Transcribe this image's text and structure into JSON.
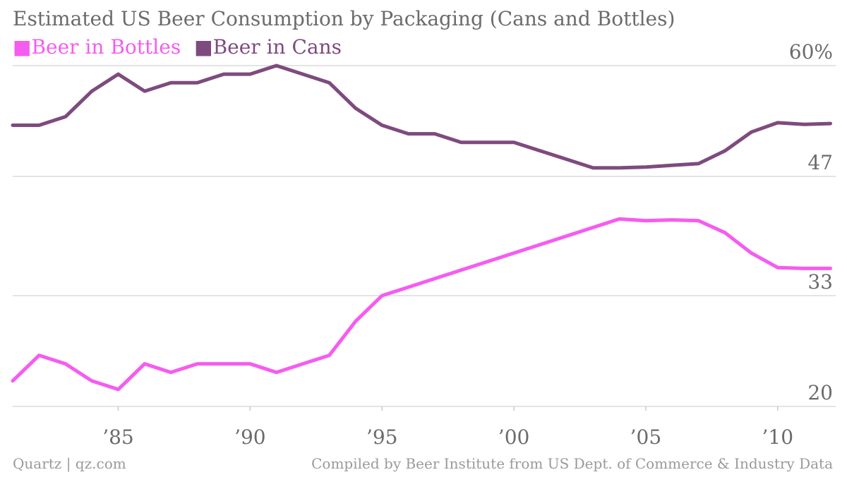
{
  "chart_data": {
    "type": "line",
    "title": "Estimated US Beer Consumption by Packaging (Cans and Bottles)",
    "xlabel": "",
    "ylabel": "",
    "x": [
      1981,
      1982,
      1983,
      1984,
      1985,
      1986,
      1987,
      1988,
      1989,
      1990,
      1991,
      1992,
      1993,
      1994,
      1995,
      1996,
      1997,
      1998,
      1999,
      2000,
      2001,
      2002,
      2003,
      2004,
      2005,
      2006,
      2007,
      2008,
      2009,
      2010,
      2011,
      2012
    ],
    "x_tick_values": [
      1985,
      1990,
      1995,
      2000,
      2005,
      2010
    ],
    "x_tick_labels": [
      "’85",
      "’90",
      "’95",
      "’00",
      "’05",
      "’10"
    ],
    "xlim": [
      1981,
      2012.2
    ],
    "y_tick_values": [
      20,
      33,
      47,
      60
    ],
    "y_tick_labels": [
      "20",
      "33",
      "47",
      "60%"
    ],
    "ylim": [
      20,
      60
    ],
    "grid": true,
    "legend_placement": "top-left",
    "series": [
      {
        "name": "Beer in Bottles",
        "color": "#f55cf0",
        "values": [
          23,
          26,
          25,
          23,
          22,
          25,
          24,
          25,
          25,
          25,
          24,
          25,
          26,
          30,
          33,
          34,
          35,
          36,
          37,
          38,
          39,
          40,
          41,
          42,
          41.8,
          41.9,
          41.8,
          40.4,
          38,
          36.3,
          36.2,
          36.2
        ]
      },
      {
        "name": "Beer in Cans",
        "color": "#7e4b7e",
        "values": [
          53,
          53,
          54,
          57,
          59,
          57,
          58,
          58,
          59,
          59,
          60,
          59,
          58,
          55,
          53,
          52,
          52,
          51,
          51,
          51,
          50,
          49,
          48,
          48,
          48.1,
          48.3,
          48.5,
          50,
          52.2,
          53.3,
          53.1,
          53.2
        ]
      }
    ]
  },
  "footer": {
    "source_left": "Quartz | qz.com",
    "source_right": "Compiled by Beer Institute from US Dept. of Commerce & Industry Data"
  }
}
